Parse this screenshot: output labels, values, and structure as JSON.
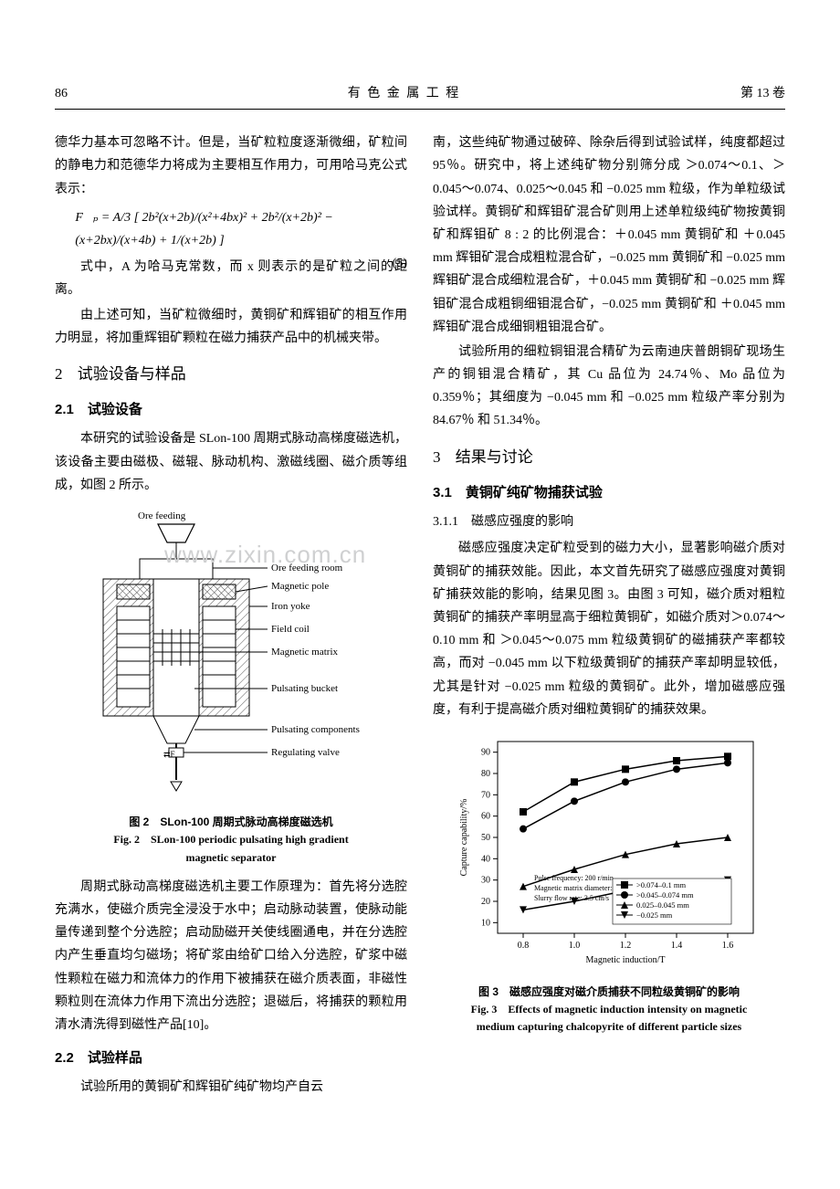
{
  "header": {
    "page_num": "86",
    "journal": "有 色 金 属 工 程",
    "volume": "第 13 卷"
  },
  "left_col": {
    "p1": "德华力基本可忽略不计。但是，当矿粒粒度逐渐微细，矿粒间的静电力和范德华力将成为主要相互作用力，可用哈马克公式表示：",
    "equation": "F⃗ₚ = A/3 [ 2b²(x+2b)/(x²+4bx)² + 2b²/(x+2b)² − (x+2bx)/(x+4b) + 1/(x+2b) ]",
    "eq_num": "(5)",
    "p2": "式中，A 为哈马克常数，而 x 则表示的是矿粒之间的距离。",
    "p3": "由上述可知，当矿粒微细时，黄铜矿和辉钼矿的相互作用力明显，将加重辉钼矿颗粒在磁力捕获产品中的机械夹带。",
    "sec2_title": "试验设备与样品",
    "sec2_num": "2",
    "sec2_1_title": "2.1　试验设备",
    "p4": "本研究的试验设备是 SLon-100 周期式脉动高梯度磁选机，该设备主要由磁极、磁辊、脉动机构、激磁线圈、磁介质等组成，如图 2 所示。",
    "fig2": {
      "labels": [
        "Ore feeding",
        "Ore feeding room",
        "Magnetic pole",
        "Iron yoke",
        "Field coil",
        "Magnetic matrix",
        "Pulsating bucket",
        "Pulsating components",
        "Regulating valve"
      ],
      "hatch_color": "#555555",
      "line_color": "#000000",
      "caption_cn": "图 2　SLon-100 周期式脉动高梯度磁选机",
      "caption_en1": "Fig. 2　SLon-100 periodic pulsating high gradient",
      "caption_en2": "magnetic separator"
    },
    "p5": "周期式脉动高梯度磁选机主要工作原理为：首先将分选腔充满水，使磁介质完全浸没于水中；启动脉动装置，使脉动能量传递到整个分选腔；启动励磁开关使线圈通电，并在分选腔内产生垂直均匀磁场；将矿浆由给矿口给入分选腔，矿浆中磁性颗粒在磁力和流体力的作用下被捕获在磁介质表面，非磁性颗粒则在流体力作用下流出分选腔；退磁后，将捕获的颗粒用清水清洗得到磁性产品[10]。",
    "sec2_2_title": "2.2　试验样品",
    "p6": "试验所用的黄铜矿和辉钼矿纯矿物均产自云"
  },
  "right_col": {
    "p1": "南，这些纯矿物通过破碎、除杂后得到试验试样，纯度都超过 95％。研究中，将上述纯矿物分别筛分成 ＞0.074～0.1、＞0.045～0.074、0.025～0.045 和 −0.025 mm 粒级，作为单粒级试验试样。黄铜矿和辉钼矿混合矿则用上述单粒级纯矿物按黄铜矿和辉钼矿 8 : 2 的比例混合：＋0.045 mm 黄铜矿和 ＋0.045 mm 辉钼矿混合成粗粒混合矿，−0.025 mm 黄铜矿和 −0.025 mm 辉钼矿混合成细粒混合矿，＋0.045 mm 黄铜矿和 −0.025 mm 辉钼矿混合成粗铜细钼混合矿，−0.025 mm 黄铜矿和 ＋0.045 mm 辉钼矿混合成细铜粗钼混合矿。",
    "p2": "试验所用的细粒铜钼混合精矿为云南迪庆普朗铜矿现场生产的铜钼混合精矿，其 Cu 品位为 24.74％、Mo 品位为 0.359％；其细度为 −0.045 mm 和 −0.025 mm 粒级产率分别为 84.67％ 和 51.34％。",
    "sec3_num": "3",
    "sec3_title": "结果与讨论",
    "sec3_1_title": "3.1　黄铜矿纯矿物捕获试验",
    "sec3_1_1_title": "3.1.1　磁感应强度的影响",
    "p3": "磁感应强度决定矿粒受到的磁力大小，显著影响磁介质对黄铜矿的捕获效能。因此，本文首先研究了磁感应强度对黄铜矿捕获效能的影响，结果见图 3。由图 3 可知，磁介质对粗粒黄铜矿的捕获产率明显高于细粒黄铜矿，如磁介质对＞0.074～0.10 mm 和 ＞0.045～0.075 mm 粒级黄铜矿的磁捕获产率都较高，而对 −0.045 mm 以下粒级黄铜矿的捕获产率却明显较低，尤其是针对 −0.025 mm 粒级的黄铜矿。此外，增加磁感应强度，有利于提高磁介质对细粒黄铜矿的捕获效果。",
    "fig3": {
      "type": "line",
      "xlabel": "Magnetic induction/T",
      "ylabel": "Capture capability/%",
      "xlim": [
        0.7,
        1.7
      ],
      "ylim": [
        5,
        95
      ],
      "xticks": [
        0.8,
        1.0,
        1.2,
        1.4,
        1.6
      ],
      "yticks": [
        10,
        20,
        30,
        40,
        50,
        60,
        70,
        80,
        90
      ],
      "x": [
        0.8,
        1.0,
        1.2,
        1.4,
        1.6
      ],
      "series": [
        {
          "name": ">0.074–0.1 mm",
          "marker": "square",
          "color": "#000000",
          "y": [
            62,
            76,
            82,
            86,
            88
          ]
        },
        {
          "name": ">0.045–0.074 mm",
          "marker": "circle",
          "color": "#000000",
          "y": [
            54,
            67,
            76,
            82,
            85
          ]
        },
        {
          "name": "0.025–0.045 mm",
          "marker": "triangle-up",
          "color": "#000000",
          "y": [
            27,
            35,
            42,
            47,
            50
          ]
        },
        {
          "name": "−0.025 mm",
          "marker": "triangle-down",
          "color": "#000000",
          "y": [
            16,
            20,
            25,
            28,
            30
          ]
        }
      ],
      "annotations": [
        "Pulse frequency: 200 r/min",
        "Magnetic matrix diameter: 2.0 mm",
        "Slurry flow rate: 3.5 cm/s"
      ],
      "annotation_fontsize": 8,
      "label_fontsize": 10,
      "background_color": "#ffffff",
      "tick_color": "#000000",
      "caption_cn": "图 3　磁感应强度对磁介质捕获不同粒级黄铜矿的影响",
      "caption_en1": "Fig. 3　Effects of magnetic induction intensity on magnetic",
      "caption_en2": "medium capturing chalcopyrite of different particle sizes"
    }
  },
  "watermark": "www.zixin.com.cn"
}
